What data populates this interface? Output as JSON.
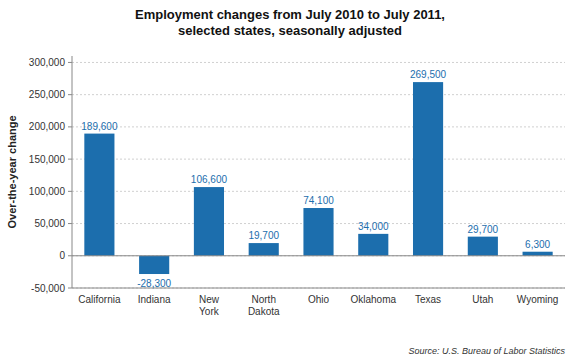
{
  "chart_data": {
    "type": "bar",
    "title": "Employment changes from July 2010 to July 2011,\nselected states, seasonally adjusted",
    "categories": [
      "California",
      "Indiana",
      "New\nYork",
      "North\nDakota",
      "Ohio",
      "Oklahoma",
      "Texas",
      "Utah",
      "Wyoming"
    ],
    "values": [
      189600,
      -28300,
      106600,
      19700,
      74100,
      34000,
      269500,
      29700,
      6300
    ],
    "value_labels": [
      "189,600",
      "-28,300",
      "106,600",
      "19,700",
      "74,100",
      "34,000",
      "269,500",
      "29,700",
      "6,300"
    ],
    "data_labels": true,
    "color": "#1C6EAD",
    "ylabel": "Over-the-year change",
    "ylim": [
      -50000,
      310000
    ],
    "yticks": [
      {
        "value": -50000,
        "label": "-50,000"
      },
      0,
      {
        "value": 50000,
        "label": "50,000"
      },
      {
        "value": 100000,
        "label": "100,000"
      },
      {
        "value": 150000,
        "label": "150,000"
      },
      {
        "value": 200000,
        "label": "200,000"
      },
      {
        "value": 250000,
        "label": "250,000"
      },
      {
        "value": 300000,
        "label": "300,000"
      }
    ],
    "grid": true,
    "annotations": [
      "Source: U.S. Bureau of Labor Statistics"
    ]
  }
}
